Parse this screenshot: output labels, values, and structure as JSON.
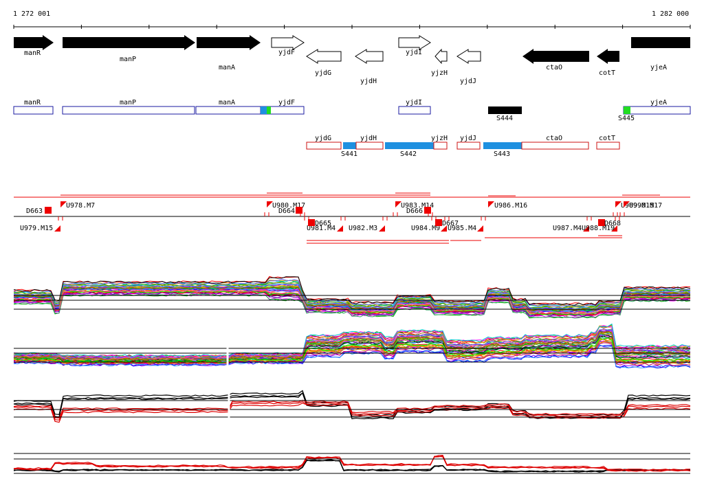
{
  "ruler": {
    "start_label": "1 272 001",
    "end_label": "1 282 000"
  },
  "genes_top": [
    {
      "name": "manR",
      "strand": "+",
      "filled": true
    },
    {
      "name": "manP",
      "strand": "+",
      "filled": true
    },
    {
      "name": "manA",
      "strand": "+",
      "filled": true
    },
    {
      "name": "yjdF",
      "strand": "+",
      "filled": false
    },
    {
      "name": "yjdG",
      "strand": "-",
      "filled": false
    },
    {
      "name": "yjdH",
      "strand": "-",
      "filled": false
    },
    {
      "name": "yjdI",
      "strand": "+",
      "filled": false
    },
    {
      "name": "yjzH",
      "strand": "-",
      "filled": false
    },
    {
      "name": "yjdJ",
      "strand": "-",
      "filled": false
    },
    {
      "name": "ctaO",
      "strand": "-",
      "filled": true
    },
    {
      "name": "cotT",
      "strand": "-",
      "filled": true
    },
    {
      "name": "yjeA",
      "strand": "+",
      "filled": true
    }
  ],
  "transcripts_plus": [
    {
      "name": "manR"
    },
    {
      "name": "manP"
    },
    {
      "name": "manA"
    },
    {
      "name": "yjdF"
    },
    {
      "name": "yjdI"
    },
    {
      "name": "yjeA"
    }
  ],
  "transcripts_minus": [
    {
      "name": "yjdG"
    },
    {
      "name": "yjdH"
    },
    {
      "name": "yjzH"
    },
    {
      "name": "yjdJ"
    },
    {
      "name": "ctaO"
    },
    {
      "name": "cotT"
    }
  ],
  "segments": [
    {
      "name": "S441"
    },
    {
      "name": "S442"
    },
    {
      "name": "S443"
    },
    {
      "name": "S444"
    },
    {
      "name": "S445"
    }
  ],
  "segment_colors": {
    "blue": "#1e90e0",
    "green": "#22dd22",
    "black": "#000000"
  },
  "upshifts": [
    {
      "name": "U978.M7"
    },
    {
      "name": "U979.M15"
    },
    {
      "name": "U980.M17"
    },
    {
      "name": "U981.M4"
    },
    {
      "name": "U982.M3"
    },
    {
      "name": "U983.M14"
    },
    {
      "name": "U984.M9"
    },
    {
      "name": "U985.M4"
    },
    {
      "name": "U986.M16"
    },
    {
      "name": "U987.M4"
    },
    {
      "name": "U988.M19"
    },
    {
      "name": "U989.M15"
    },
    {
      "name": "U990.M17"
    }
  ],
  "downshifts": [
    {
      "name": "D663"
    },
    {
      "name": "D664"
    },
    {
      "name": "D665"
    },
    {
      "name": "D666"
    },
    {
      "name": "D667"
    },
    {
      "name": "D668"
    }
  ],
  "colors": {
    "plus_box": "#1a1aa0",
    "minus_box": "#cc1111",
    "marker": "#ee0000"
  }
}
